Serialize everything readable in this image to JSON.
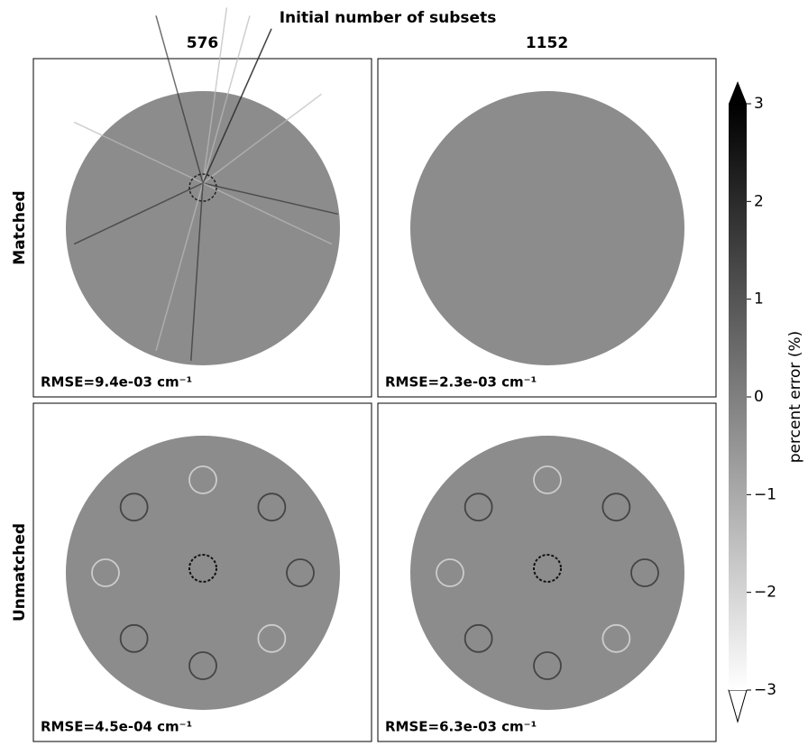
{
  "chart_data": {
    "type": "image-grid",
    "title": "Initial number of subsets",
    "column_labels": [
      "576",
      "1152"
    ],
    "row_labels": [
      "Matched",
      "Unmatched"
    ],
    "panels": [
      {
        "annotation": "RMSE=9.4e-03 cm⁻¹"
      },
      {
        "annotation": "RMSE=2.3e-03 cm⁻¹"
      },
      {
        "annotation": "RMSE=4.5e-04 cm⁻¹"
      },
      {
        "annotation": "RMSE=6.3e-03 cm⁻¹"
      }
    ],
    "colorbar_label": "percent error (%)",
    "colormap": [
      "#ffffff",
      "#000000"
    ],
    "ylim": [
      -3,
      3
    ],
    "yticks": [
      {
        "value": -3,
        "label": "−3"
      },
      {
        "value": -2,
        "label": "−2"
      },
      {
        "value": -1,
        "label": "−1"
      },
      0,
      1,
      2,
      3
    ]
  }
}
